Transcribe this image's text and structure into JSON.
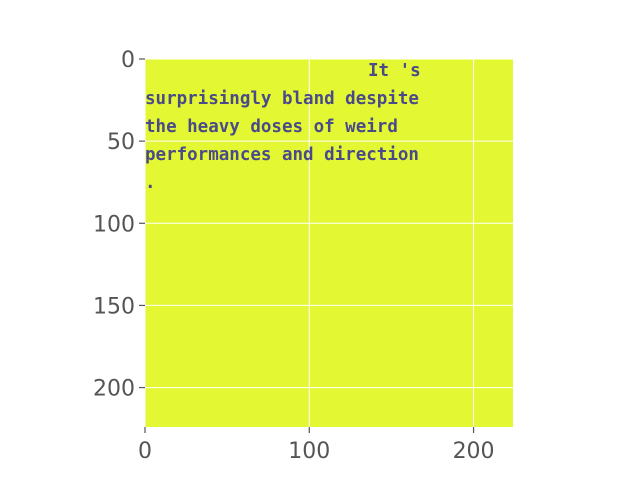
{
  "chart_data": {
    "type": "heatmap",
    "xlim": [
      0,
      224
    ],
    "ylim": [
      224,
      0
    ],
    "xticks": [
      0,
      100,
      200
    ],
    "yticks": [
      0,
      50,
      100,
      150,
      200
    ],
    "grid": true,
    "colors": {
      "background": "#e3f832",
      "grid": "#ffffff",
      "text_main": "#4a4a8a",
      "text_accent": "#c0304a",
      "tick_labels": "#555555"
    },
    "image_text_lines": [
      "It 's",
      "surprisingly bland despite",
      "the heavy doses of weird",
      "performances and direction",
      "."
    ]
  }
}
